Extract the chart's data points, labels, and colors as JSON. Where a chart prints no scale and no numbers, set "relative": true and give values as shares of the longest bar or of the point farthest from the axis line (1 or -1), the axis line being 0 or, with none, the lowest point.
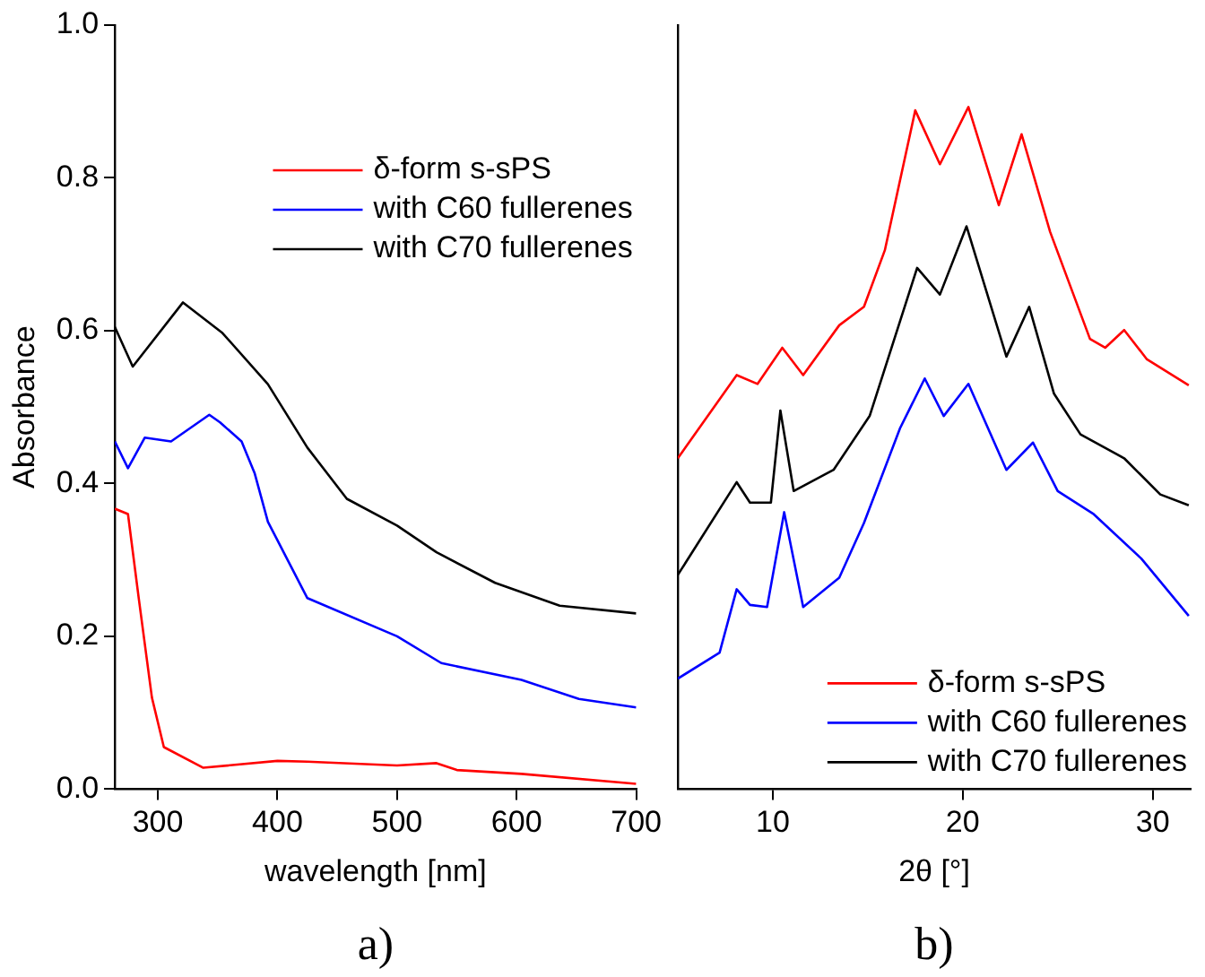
{
  "chart_data": [
    {
      "type": "line",
      "xlabel": "wavelength [nm]",
      "ylabel": "Absorbance",
      "xlim": [
        264,
        700
      ],
      "xticks": [
        300,
        400,
        500,
        600,
        700
      ],
      "ylim": [
        0,
        1
      ],
      "yticks": [
        {
          "value": 0,
          "label": "0.0"
        },
        0.2,
        0.4,
        0.6,
        0.8,
        {
          "value": 1,
          "label": "1.0"
        }
      ],
      "legend": "top right",
      "grid": false,
      "annotations": [
        "a)"
      ],
      "series": [
        {
          "name": "δ-form s-sPS",
          "color": "#ff0000",
          "x": [
            264,
            275,
            284,
            295,
            305,
            338,
            400,
            425,
            500,
            533,
            550,
            604,
            700
          ],
          "values": [
            0.367,
            0.36,
            0.25,
            0.12,
            0.055,
            0.028,
            0.037,
            0.036,
            0.031,
            0.034,
            0.025,
            0.02,
            0.007
          ]
        },
        {
          "name": "with C60 fullerenes",
          "color": "#0000ff",
          "x": [
            264,
            275,
            289,
            311,
            343,
            352,
            370,
            381,
            392,
            425,
            500,
            537,
            604,
            652,
            700
          ],
          "values": [
            0.455,
            0.42,
            0.46,
            0.455,
            0.49,
            0.48,
            0.455,
            0.413,
            0.35,
            0.25,
            0.2,
            0.165,
            0.143,
            0.118,
            0.107
          ]
        },
        {
          "name": "with C70 fullerenes",
          "color": "#000000",
          "x": [
            264,
            279,
            321,
            354,
            392,
            425,
            458,
            500,
            533,
            582,
            636,
            700
          ],
          "values": [
            0.605,
            0.553,
            0.637,
            0.597,
            0.53,
            0.447,
            0.38,
            0.345,
            0.31,
            0.27,
            0.24,
            0.23
          ]
        }
      ]
    },
    {
      "type": "line",
      "xlabel": "2θ [°]",
      "xlim": [
        5,
        32
      ],
      "xticks": [
        10,
        20,
        30
      ],
      "relative": true,
      "legend": "bottom right",
      "grid": false,
      "annotations": [
        "b)"
      ],
      "series": [
        {
          "name": "δ-form s-sPS",
          "color": "#ff0000",
          "x": [
            5.0,
            8.1,
            9.2,
            10.5,
            11.6,
            13.5,
            14.8,
            15.9,
            17.5,
            18.8,
            20.3,
            21.9,
            23.1,
            24.6,
            26.7,
            27.5,
            28.5,
            29.7,
            31.9
          ],
          "values": [
            0.485,
            0.607,
            0.594,
            0.647,
            0.607,
            0.68,
            0.707,
            0.79,
            0.995,
            0.916,
            1.0,
            0.856,
            0.96,
            0.817,
            0.66,
            0.647,
            0.673,
            0.63,
            0.592
          ]
        },
        {
          "name": "with C60 fullerenes",
          "color": "#0000ff",
          "x": [
            5.0,
            7.2,
            8.1,
            8.8,
            9.7,
            10.6,
            11.6,
            13.5,
            14.8,
            16.7,
            18.0,
            19.0,
            20.3,
            22.3,
            23.7,
            25.0,
            26.9,
            29.4,
            31.9
          ],
          "values": [
            0.162,
            0.2,
            0.293,
            0.27,
            0.267,
            0.406,
            0.267,
            0.31,
            0.39,
            0.529,
            0.602,
            0.547,
            0.594,
            0.468,
            0.508,
            0.437,
            0.403,
            0.338,
            0.254
          ]
        },
        {
          "name": "with C70 fullerenes",
          "color": "#000000",
          "x": [
            5.0,
            8.1,
            8.8,
            9.9,
            10.4,
            11.1,
            13.2,
            15.1,
            17.6,
            18.8,
            20.2,
            22.3,
            23.5,
            24.8,
            26.2,
            28.5,
            30.4,
            31.9
          ],
          "values": [
            0.314,
            0.45,
            0.42,
            0.42,
            0.555,
            0.437,
            0.468,
            0.547,
            0.764,
            0.725,
            0.825,
            0.634,
            0.707,
            0.58,
            0.52,
            0.485,
            0.432,
            0.416
          ]
        }
      ]
    }
  ]
}
